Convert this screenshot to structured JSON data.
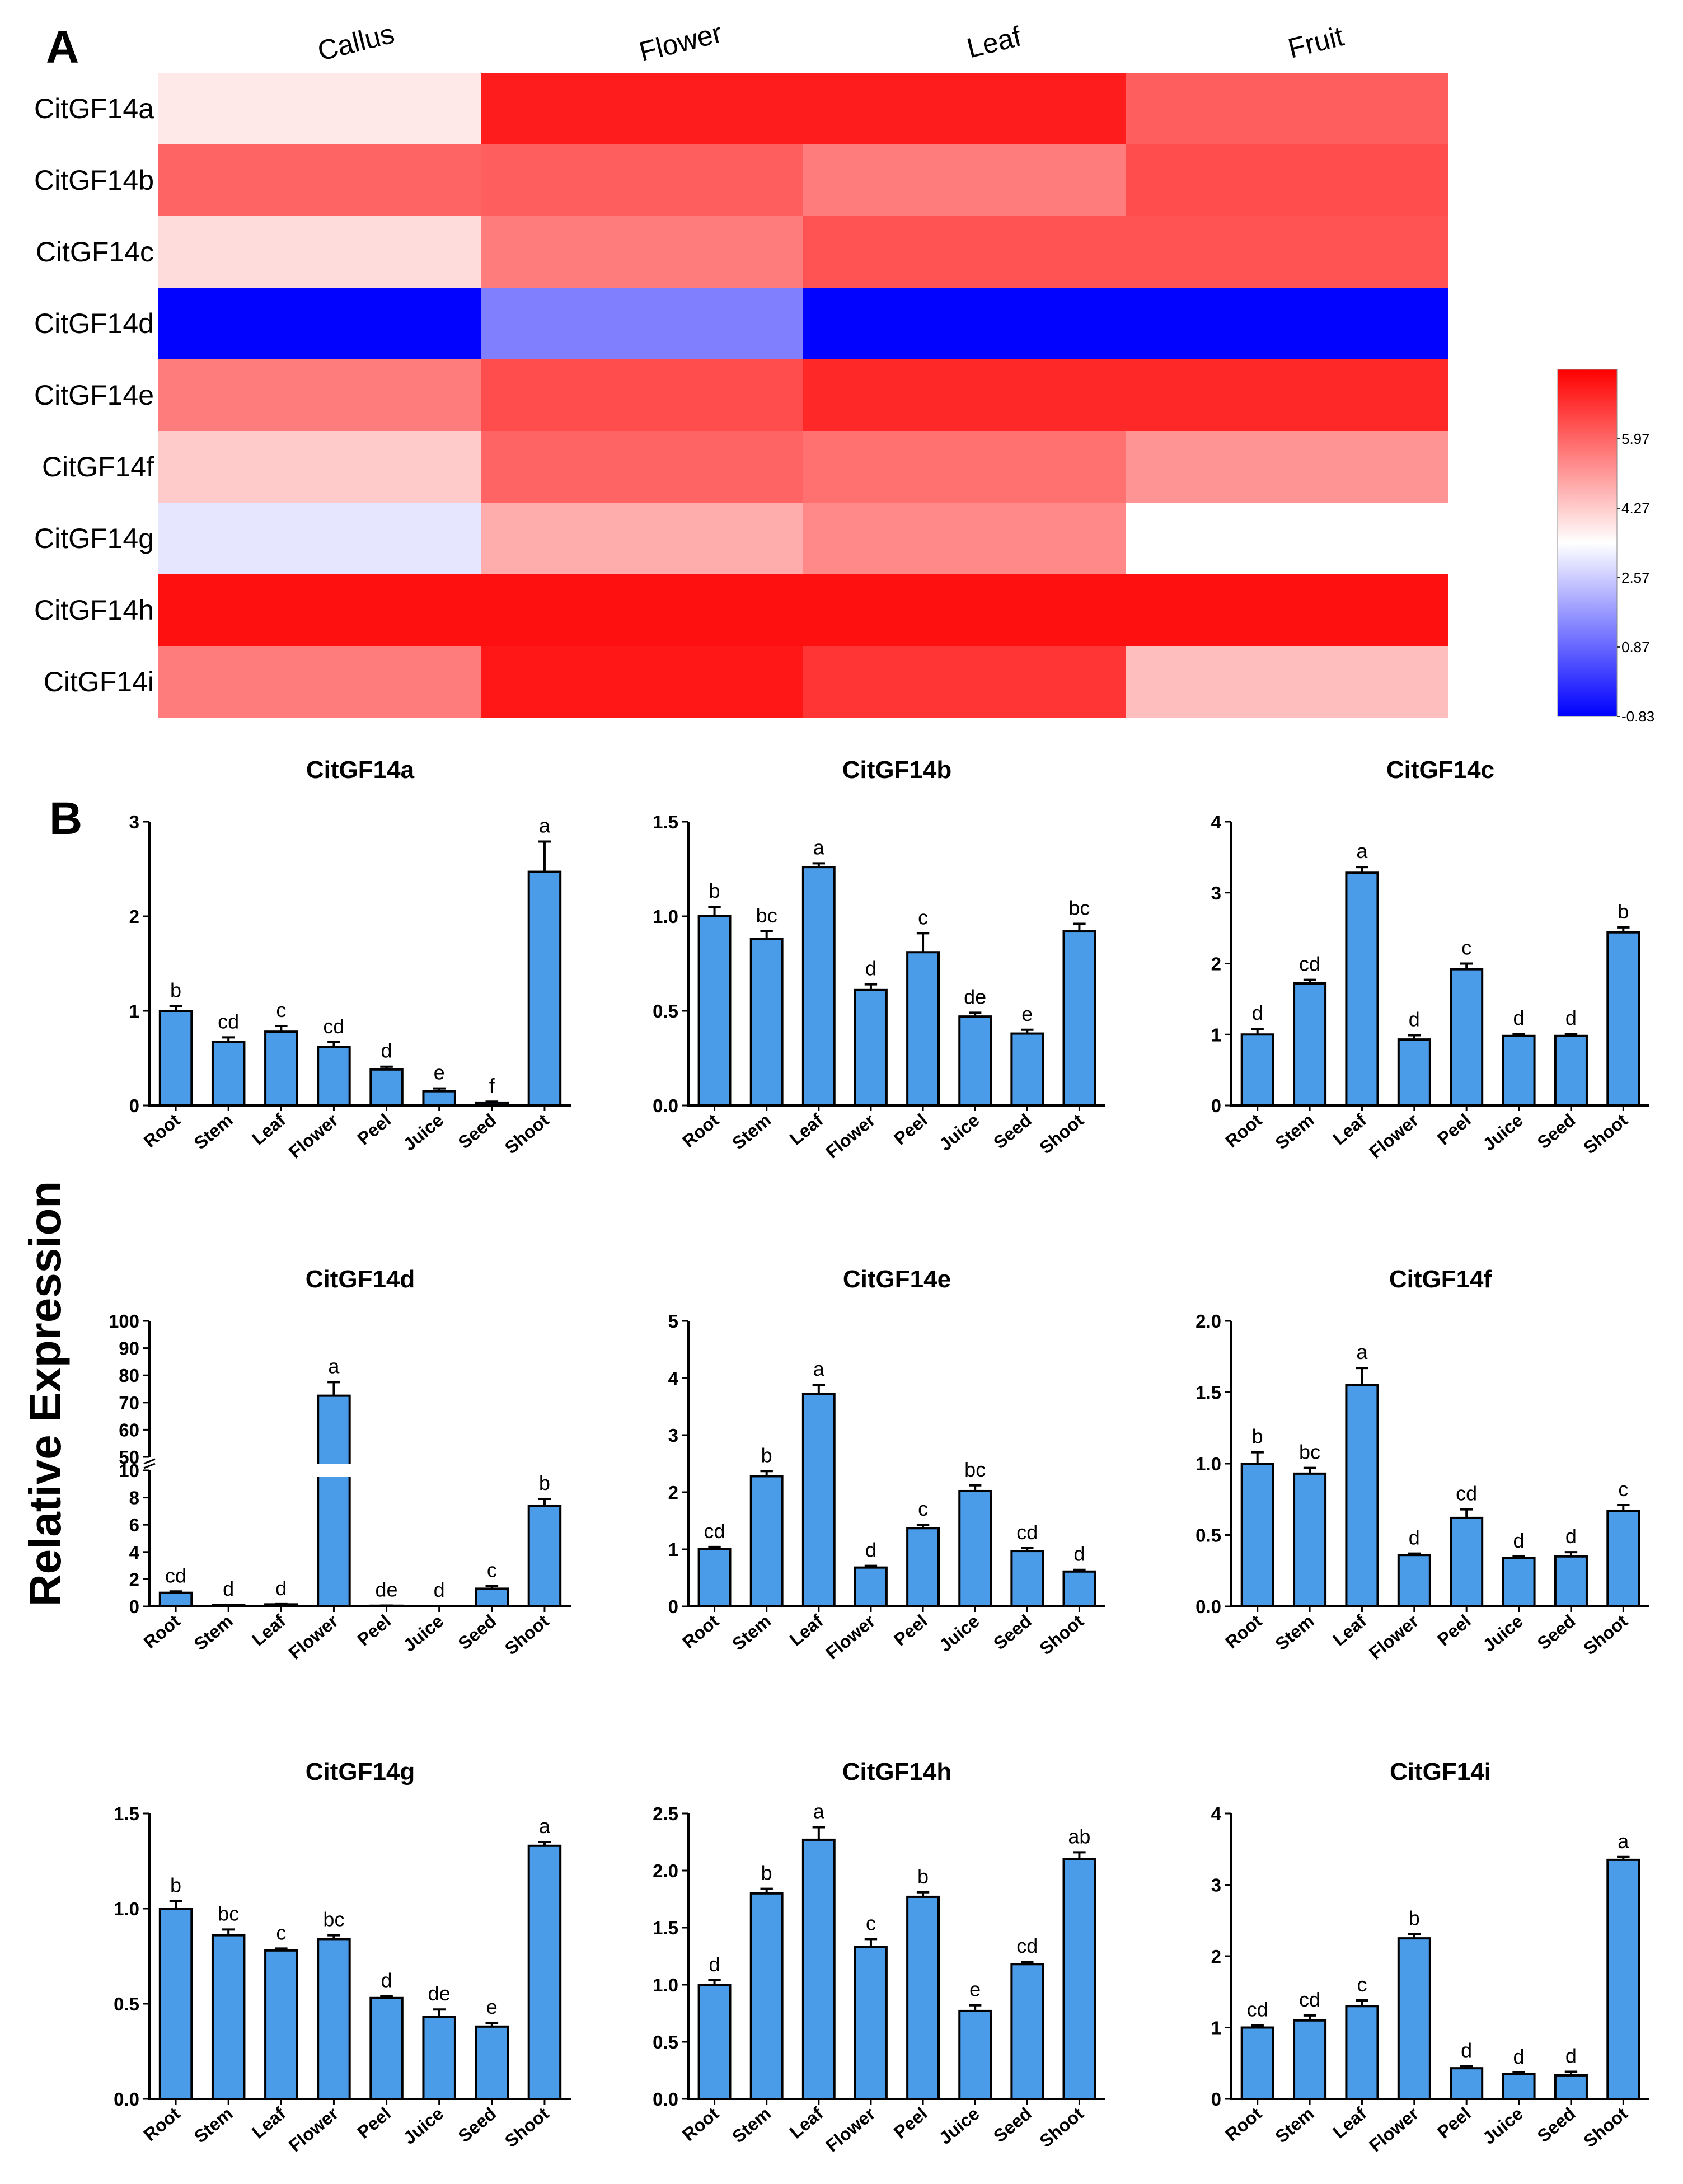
{
  "figure": {
    "panel_a_label": "A",
    "panel_b_label": "B",
    "y_axis_label": "Relative Expression"
  },
  "chart_data": [
    {
      "type": "heatmap",
      "columns": [
        "Callus",
        "Flower",
        "Leaf",
        "Fruit"
      ],
      "rows": [
        "CitGF14a",
        "CitGF14b",
        "CitGF14c",
        "CitGF14d",
        "CitGF14e",
        "CitGF14f",
        "CitGF14g",
        "CitGF14h",
        "CitGF14i"
      ],
      "values": [
        [
          3.8,
          7.2,
          7.2,
          6.1
        ],
        [
          6.0,
          6.1,
          5.6,
          6.4
        ],
        [
          4.0,
          5.6,
          6.3,
          6.3
        ],
        [
          -0.8,
          1.3,
          -0.8,
          -0.8
        ],
        [
          5.6,
          6.4,
          7.0,
          7.0
        ],
        [
          4.3,
          6.0,
          5.8,
          5.2
        ],
        [
          3.0,
          4.8,
          5.4,
          null
        ],
        [
          7.4,
          7.4,
          7.4,
          7.4
        ],
        [
          5.6,
          7.3,
          6.8,
          4.5
        ]
      ],
      "colorbar": {
        "ticks": [
          5.97,
          4.27,
          2.57,
          0.87,
          -0.83
        ],
        "min": -0.83,
        "max": 7.67,
        "low_color": "#0000ff",
        "mid_color": "#ffffff",
        "high_color": "#ff0000"
      }
    },
    {
      "type": "bar",
      "title": "CitGF14a",
      "categories": [
        "Root",
        "Stem",
        "Leaf",
        "Flower",
        "Peel",
        "Juice",
        "Seed",
        "Shoot"
      ],
      "values": [
        1.0,
        0.67,
        0.78,
        0.62,
        0.38,
        0.15,
        0.03,
        2.47
      ],
      "errors": [
        0.05,
        0.05,
        0.06,
        0.05,
        0.03,
        0.03,
        0.01,
        0.32
      ],
      "letters": [
        "b",
        "cd",
        "c",
        "cd",
        "d",
        "e",
        "f",
        "a"
      ],
      "ylim": [
        0,
        3
      ],
      "yticks": [
        0,
        1,
        2,
        3
      ],
      "yticklabels": [
        "0",
        "1",
        "2",
        "3"
      ]
    },
    {
      "type": "bar",
      "title": "CitGF14b",
      "categories": [
        "Root",
        "Stem",
        "Leaf",
        "Flower",
        "Peel",
        "Juice",
        "Seed",
        "Shoot"
      ],
      "values": [
        1.0,
        0.88,
        1.26,
        0.61,
        0.81,
        0.47,
        0.38,
        0.92
      ],
      "errors": [
        0.05,
        0.04,
        0.02,
        0.03,
        0.1,
        0.02,
        0.02,
        0.04
      ],
      "letters": [
        "b",
        "bc",
        "a",
        "d",
        "c",
        "de",
        "e",
        "bc"
      ],
      "ylim": [
        0,
        1.5
      ],
      "yticks": [
        0,
        0.5,
        1.0,
        1.5
      ],
      "yticklabels": [
        "0.0",
        "0.5",
        "1.0",
        "1.5"
      ]
    },
    {
      "type": "bar",
      "title": "CitGF14c",
      "categories": [
        "Root",
        "Stem",
        "Leaf",
        "Flower",
        "Peel",
        "Juice",
        "Seed",
        "Shoot"
      ],
      "values": [
        1.0,
        1.72,
        3.28,
        0.93,
        1.92,
        0.98,
        0.98,
        2.44
      ],
      "errors": [
        0.08,
        0.05,
        0.08,
        0.06,
        0.08,
        0.03,
        0.03,
        0.07
      ],
      "letters": [
        "d",
        "cd",
        "a",
        "d",
        "c",
        "d",
        "d",
        "b"
      ],
      "ylim": [
        0,
        4
      ],
      "yticks": [
        0,
        1,
        2,
        3,
        4
      ],
      "yticklabels": [
        "0",
        "1",
        "2",
        "3",
        "4"
      ]
    },
    {
      "type": "bar",
      "title": "CitGF14d",
      "categories": [
        "Root",
        "Stem",
        "Leaf",
        "Flower",
        "Peel",
        "Juice",
        "Seed",
        "Shoot"
      ],
      "values": [
        1.0,
        0.1,
        0.15,
        72.5,
        0.05,
        0.03,
        1.3,
        7.4
      ],
      "errors": [
        0.1,
        0.02,
        0.02,
        5.0,
        0.01,
        0.01,
        0.2,
        0.5
      ],
      "letters": [
        "cd",
        "d",
        "d",
        "a",
        "de",
        "d",
        "c",
        "b"
      ],
      "axis_break": [
        10,
        50
      ],
      "ylim": [
        0,
        100
      ],
      "yticks": [
        0,
        2,
        4,
        6,
        8,
        10,
        50,
        60,
        70,
        80,
        90,
        100
      ],
      "yticklabels": [
        "0",
        "2",
        "4",
        "6",
        "8",
        "10",
        "50",
        "60",
        "70",
        "80",
        "90",
        "100"
      ]
    },
    {
      "type": "bar",
      "title": "CitGF14e",
      "categories": [
        "Root",
        "Stem",
        "Leaf",
        "Flower",
        "Peel",
        "Juice",
        "Seed",
        "Shoot"
      ],
      "values": [
        1.0,
        2.28,
        3.72,
        0.68,
        1.37,
        2.02,
        0.97,
        0.61
      ],
      "errors": [
        0.04,
        0.09,
        0.16,
        0.03,
        0.06,
        0.1,
        0.05,
        0.03
      ],
      "letters": [
        "cd",
        "b",
        "a",
        "d",
        "c",
        "bc",
        "cd",
        "d"
      ],
      "ylim": [
        0,
        5
      ],
      "yticks": [
        0,
        1,
        2,
        3,
        4,
        5
      ],
      "yticklabels": [
        "0",
        "1",
        "2",
        "3",
        "4",
        "5"
      ]
    },
    {
      "type": "bar",
      "title": "CitGF14f",
      "categories": [
        "Root",
        "Stem",
        "Leaf",
        "Flower",
        "Peel",
        "Juice",
        "Seed",
        "Shoot"
      ],
      "values": [
        1.0,
        0.93,
        1.55,
        0.36,
        0.62,
        0.34,
        0.35,
        0.67
      ],
      "errors": [
        0.08,
        0.04,
        0.12,
        0.01,
        0.06,
        0.01,
        0.03,
        0.04
      ],
      "letters": [
        "b",
        "bc",
        "a",
        "d",
        "cd",
        "d",
        "d",
        "c"
      ],
      "ylim": [
        0,
        2
      ],
      "yticks": [
        0,
        0.5,
        1.0,
        1.5,
        2.0
      ],
      "yticklabels": [
        "0.0",
        "0.5",
        "1.0",
        "1.5",
        "2.0"
      ]
    },
    {
      "type": "bar",
      "title": "CitGF14g",
      "categories": [
        "Root",
        "Stem",
        "Leaf",
        "Flower",
        "Peel",
        "Juice",
        "Seed",
        "Shoot"
      ],
      "values": [
        1.0,
        0.86,
        0.78,
        0.84,
        0.53,
        0.43,
        0.38,
        1.33
      ],
      "errors": [
        0.04,
        0.03,
        0.01,
        0.02,
        0.01,
        0.04,
        0.02,
        0.02
      ],
      "letters": [
        "b",
        "bc",
        "c",
        "bc",
        "d",
        "de",
        "e",
        "a"
      ],
      "ylim": [
        0,
        1.5
      ],
      "yticks": [
        0,
        0.5,
        1.0,
        1.5
      ],
      "yticklabels": [
        "0.0",
        "0.5",
        "1.0",
        "1.5"
      ]
    },
    {
      "type": "bar",
      "title": "CitGF14h",
      "categories": [
        "Root",
        "Stem",
        "Leaf",
        "Flower",
        "Peel",
        "Juice",
        "Seed",
        "Shoot"
      ],
      "values": [
        1.0,
        1.8,
        2.27,
        1.33,
        1.77,
        0.77,
        1.18,
        2.1
      ],
      "errors": [
        0.04,
        0.04,
        0.11,
        0.07,
        0.04,
        0.05,
        0.02,
        0.06
      ],
      "letters": [
        "d",
        "b",
        "a",
        "c",
        "b",
        "e",
        "cd",
        "ab"
      ],
      "ylim": [
        0,
        2.5
      ],
      "yticks": [
        0,
        0.5,
        1.0,
        1.5,
        2.0,
        2.5
      ],
      "yticklabels": [
        "0.0",
        "0.5",
        "1.0",
        "1.5",
        "2.0",
        "2.5"
      ]
    },
    {
      "type": "bar",
      "title": "CitGF14i",
      "categories": [
        "Root",
        "Stem",
        "Leaf",
        "Flower",
        "Peel",
        "Juice",
        "Seed",
        "Shoot"
      ],
      "values": [
        1.0,
        1.1,
        1.3,
        2.25,
        0.43,
        0.35,
        0.33,
        3.35
      ],
      "errors": [
        0.03,
        0.07,
        0.08,
        0.06,
        0.03,
        0.02,
        0.05,
        0.04
      ],
      "letters": [
        "cd",
        "cd",
        "c",
        "b",
        "d",
        "d",
        "d",
        "a"
      ],
      "ylim": [
        0,
        4
      ],
      "yticks": [
        0,
        1,
        2,
        3,
        4
      ],
      "yticklabels": [
        "0",
        "1",
        "2",
        "3",
        "4"
      ]
    }
  ]
}
